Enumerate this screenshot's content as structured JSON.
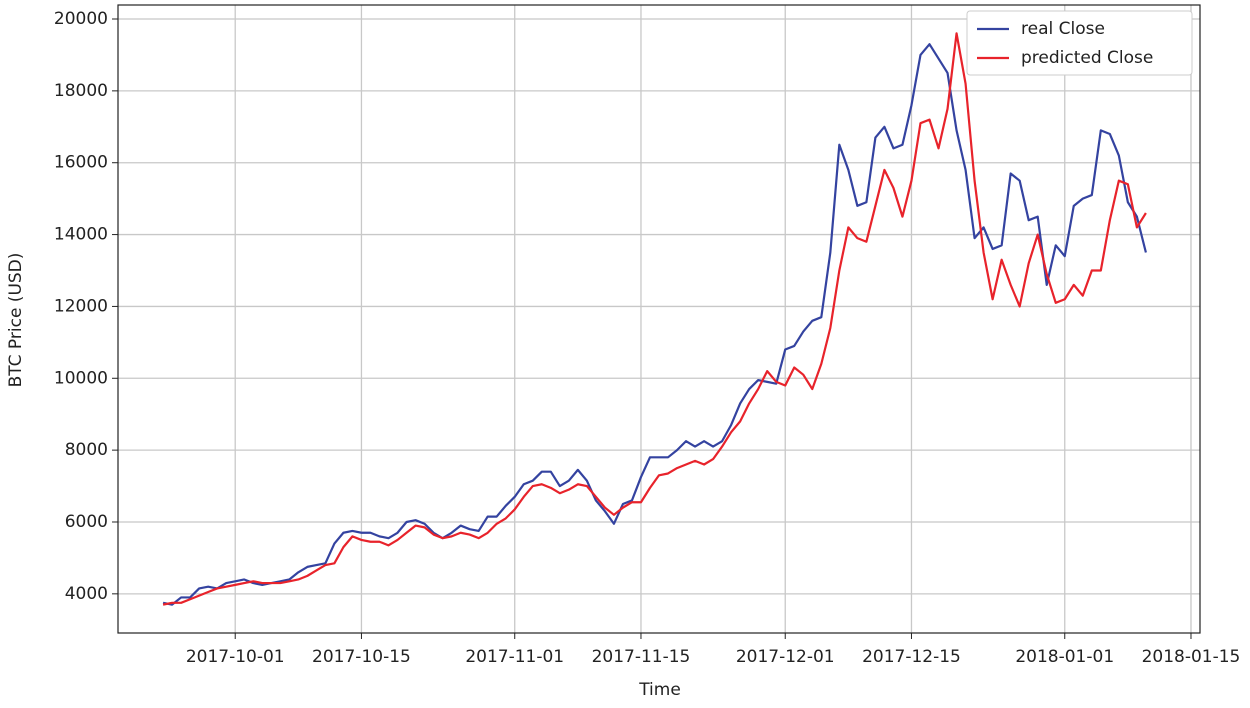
{
  "chart_data": {
    "type": "line",
    "xlabel": "Time",
    "ylabel": "BTC Price (USD)",
    "x": [
      "2017-09-23",
      "2017-09-24",
      "2017-09-25",
      "2017-09-26",
      "2017-09-27",
      "2017-09-28",
      "2017-09-29",
      "2017-09-30",
      "2017-10-01",
      "2017-10-02",
      "2017-10-03",
      "2017-10-04",
      "2017-10-05",
      "2017-10-06",
      "2017-10-07",
      "2017-10-08",
      "2017-10-09",
      "2017-10-10",
      "2017-10-11",
      "2017-10-12",
      "2017-10-13",
      "2017-10-14",
      "2017-10-15",
      "2017-10-16",
      "2017-10-17",
      "2017-10-18",
      "2017-10-19",
      "2017-10-20",
      "2017-10-21",
      "2017-10-22",
      "2017-10-23",
      "2017-10-24",
      "2017-10-25",
      "2017-10-26",
      "2017-10-27",
      "2017-10-28",
      "2017-10-29",
      "2017-10-30",
      "2017-10-31",
      "2017-11-01",
      "2017-11-02",
      "2017-11-03",
      "2017-11-04",
      "2017-11-05",
      "2017-11-06",
      "2017-11-07",
      "2017-11-08",
      "2017-11-09",
      "2017-11-10",
      "2017-11-11",
      "2017-11-12",
      "2017-11-13",
      "2017-11-14",
      "2017-11-15",
      "2017-11-16",
      "2017-11-17",
      "2017-11-18",
      "2017-11-19",
      "2017-11-20",
      "2017-11-21",
      "2017-11-22",
      "2017-11-23",
      "2017-11-24",
      "2017-11-25",
      "2017-11-26",
      "2017-11-27",
      "2017-11-28",
      "2017-11-29",
      "2017-11-30",
      "2017-12-01",
      "2017-12-02",
      "2017-12-03",
      "2017-12-04",
      "2017-12-05",
      "2017-12-06",
      "2017-12-07",
      "2017-12-08",
      "2017-12-09",
      "2017-12-10",
      "2017-12-11",
      "2017-12-12",
      "2017-12-13",
      "2017-12-14",
      "2017-12-15",
      "2017-12-16",
      "2017-12-17",
      "2017-12-18",
      "2017-12-19",
      "2017-12-20",
      "2017-12-21",
      "2017-12-22",
      "2017-12-23",
      "2017-12-24",
      "2017-12-25",
      "2017-12-26",
      "2017-12-27",
      "2017-12-28",
      "2017-12-29",
      "2017-12-30",
      "2017-12-31",
      "2018-01-01",
      "2018-01-02",
      "2018-01-03",
      "2018-01-04",
      "2018-01-05",
      "2018-01-06",
      "2018-01-07",
      "2018-01-08",
      "2018-01-09",
      "2018-01-10"
    ],
    "series": [
      {
        "name": "real Close",
        "color": "#3443a0",
        "values": [
          3750,
          3700,
          3900,
          3900,
          4150,
          4200,
          4150,
          4300,
          4350,
          4400,
          4300,
          4250,
          4300,
          4350,
          4400,
          4600,
          4750,
          4800,
          4850,
          5400,
          5700,
          5750,
          5700,
          5700,
          5600,
          5550,
          5700,
          6000,
          6050,
          5950,
          5700,
          5550,
          5700,
          5900,
          5800,
          5750,
          6150,
          6150,
          6450,
          6700,
          7050,
          7150,
          7400,
          7400,
          7000,
          7150,
          7450,
          7150,
          6600,
          6300,
          5950,
          6500,
          6600,
          7250,
          7800,
          7800,
          7800,
          8000,
          8250,
          8100,
          8250,
          8100,
          8250,
          8700,
          9300,
          9700,
          9950,
          9900,
          9850,
          10800,
          10900,
          11300,
          11600,
          11700,
          13500,
          16500,
          15800,
          14800,
          14900,
          16700,
          17000,
          16400,
          16500,
          17600,
          19000,
          19300,
          18900,
          18500,
          16900,
          15800,
          13900,
          14200,
          13600,
          13700,
          15700,
          15500,
          14400,
          14500,
          12600,
          13700,
          13400,
          14800,
          15000,
          15100,
          16900,
          16800,
          16200,
          14900,
          14500,
          13500
        ]
      },
      {
        "name": "predicted Close",
        "color": "#e8232b",
        "values": [
          3700,
          3750,
          3750,
          3850,
          3950,
          4050,
          4150,
          4200,
          4250,
          4300,
          4350,
          4300,
          4300,
          4300,
          4350,
          4400,
          4500,
          4650,
          4800,
          4850,
          5300,
          5600,
          5500,
          5450,
          5450,
          5350,
          5500,
          5700,
          5900,
          5850,
          5650,
          5550,
          5600,
          5700,
          5650,
          5550,
          5700,
          5950,
          6100,
          6350,
          6700,
          7000,
          7050,
          6950,
          6800,
          6900,
          7050,
          7000,
          6700,
          6400,
          6200,
          6400,
          6550,
          6550,
          6950,
          7300,
          7350,
          7500,
          7600,
          7700,
          7600,
          7750,
          8100,
          8500,
          8800,
          9300,
          9700,
          10200,
          9900,
          9800,
          10300,
          10100,
          9700,
          10400,
          11400,
          13000,
          14200,
          13900,
          13800,
          14800,
          15800,
          15300,
          14500,
          15500,
          17100,
          17200,
          16400,
          17500,
          19600,
          18200,
          15500,
          13500,
          12200,
          13300,
          12600,
          12000,
          13200,
          14000,
          12900,
          12100,
          12200,
          12600,
          12300,
          13000,
          13000,
          14400,
          15500,
          15400,
          14200,
          14600
        ]
      }
    ],
    "xlim": [
      "2017-09-18",
      "2018-01-16"
    ],
    "xticks": [
      "2017-10-01",
      "2017-10-15",
      "2017-11-01",
      "2017-11-15",
      "2017-12-01",
      "2017-12-15",
      "2018-01-01",
      "2018-01-15"
    ],
    "ylim": [
      2910,
      20390
    ],
    "yticks": [
      4000,
      6000,
      8000,
      10000,
      12000,
      14000,
      16000,
      18000,
      20000
    ],
    "grid": true,
    "legend": "upper right"
  }
}
